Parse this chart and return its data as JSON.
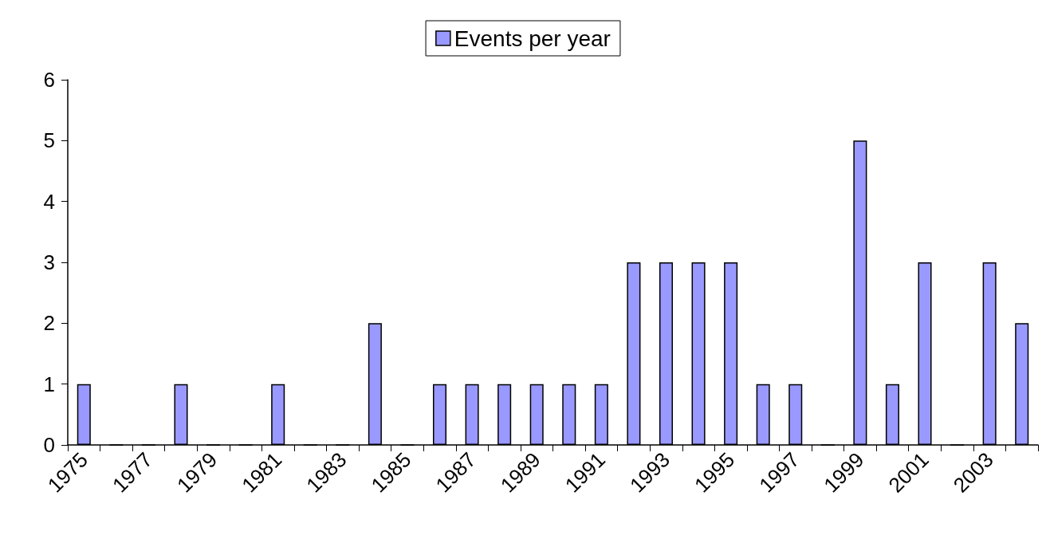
{
  "chart_data": {
    "type": "bar",
    "categories": [
      "1975",
      null,
      "1977",
      null,
      "1979",
      null,
      "1981",
      null,
      "1983",
      null,
      "1985",
      null,
      "1987",
      null,
      "1989",
      null,
      "1991",
      null,
      "1993",
      null,
      "1995",
      null,
      "1997",
      null,
      "1999",
      null,
      "2001",
      null,
      "2003",
      null
    ],
    "series": [
      {
        "name": "Events per year",
        "color": "#9999ff",
        "values": [
          1,
          0,
          0,
          1,
          0,
          0,
          1,
          0,
          0,
          2,
          0,
          1,
          1,
          1,
          1,
          1,
          1,
          3,
          3,
          3,
          3,
          1,
          1,
          0,
          5,
          1,
          3,
          0,
          3,
          2
        ]
      }
    ],
    "ylim": [
      0,
      6
    ],
    "yticks": [
      0,
      1,
      2,
      3,
      4,
      5,
      6
    ],
    "grid": false,
    "legend": "top"
  }
}
